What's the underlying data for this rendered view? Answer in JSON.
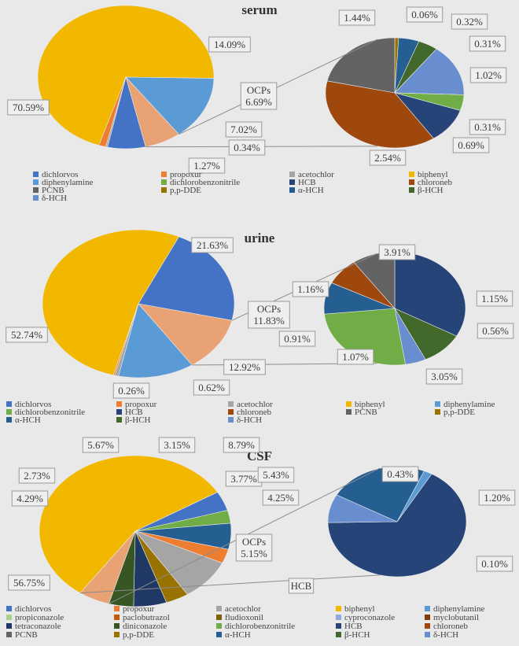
{
  "colors": {
    "dichlorvos": "#4472c4",
    "propoxur": "#ed7d31",
    "acetochlor": "#a5a5a5",
    "biphenyl": "#f2b800",
    "diphenylamine": "#5b9bd5",
    "dichlorobenzonitrile": "#70ad47",
    "HCB": "#264478",
    "chloroneb": "#9e480e",
    "PCNB": "#636363",
    "p,p-DDE": "#997300",
    "α-HCH": "#255e91",
    "β-HCH": "#43682b",
    "δ-HCH": "#698ed0",
    "propiconazole": "#a9d18e",
    "paclobutrazol": "#c55a11",
    "fludioxonil": "#7f6000",
    "cyproconazole": "#8faadc",
    "myclobutanil": "#843c0c",
    "tetraconazole": "#203864",
    "diniconazole": "#375623",
    "OCPs": "#e8a274"
  },
  "chart_data": [
    {
      "type": "pie",
      "title": "serum",
      "main_pie": {
        "slices": [
          {
            "name": "biphenyl",
            "label": "70.59%"
          },
          {
            "name": "diphenylamine",
            "label": "14.09%"
          },
          {
            "name": "OCPs",
            "label": "OCPs 6.69%"
          },
          {
            "name": "dichlorvos",
            "label": "7.02%"
          },
          {
            "name": "acetochlor",
            "label": "0.34%"
          },
          {
            "name": "propoxur",
            "label": "1.27%"
          }
        ]
      },
      "breakout_pie": {
        "slices": [
          {
            "name": "p,p-DDE",
            "label": "0.06%"
          },
          {
            "name": "α-HCH",
            "label": "0.32%"
          },
          {
            "name": "β-HCH",
            "label": "0.31%"
          },
          {
            "name": "δ-HCH",
            "label": "1.02%"
          },
          {
            "name": "dichlorobenzonitrile",
            "label": "0.31%"
          },
          {
            "name": "HCB",
            "label": "0.69%"
          },
          {
            "name": "chloroneb",
            "label": "2.54%"
          },
          {
            "name": "PCNB",
            "label": "1.44%"
          }
        ]
      },
      "legend": [
        "dichlorvos",
        "propoxur",
        "acetochlor",
        "biphenyl",
        "diphenylamine",
        "dichlorobenzonitrile",
        "HCB",
        "chloroneb",
        "PCNB",
        "p,p-DDE",
        "α-HCH",
        "β-HCH",
        "δ-HCH"
      ]
    },
    {
      "type": "pie",
      "title": "urine",
      "main_pie": {
        "slices": [
          {
            "name": "biphenyl",
            "label": "52.74%"
          },
          {
            "name": "dichlorvos",
            "label": "21.63%"
          },
          {
            "name": "OCPs",
            "label": "OCPs 11.83%"
          },
          {
            "name": "diphenylamine",
            "label": "12.92%"
          },
          {
            "name": "acetochlor",
            "label": "0.62%"
          },
          {
            "name": "propoxur",
            "label": "0.26%"
          }
        ]
      },
      "breakout_pie": {
        "slices": [
          {
            "name": "HCB",
            "label": "3.91%"
          },
          {
            "name": "β-HCH",
            "label": "1.15%"
          },
          {
            "name": "δ-HCH",
            "label": "0.56%"
          },
          {
            "name": "dichlorobenzonitrile",
            "label": "3.05%"
          },
          {
            "name": "α-HCH",
            "label": "1.07%"
          },
          {
            "name": "chloroneb",
            "label": "0.91%"
          },
          {
            "name": "PCNB",
            "label": "1.16%"
          }
        ]
      },
      "legend": [
        "dichlorvos",
        "propoxur",
        "acetochlor",
        "biphenyl",
        "diphenylamine",
        "dichlorobenzonitrile",
        "HCB",
        "chloroneb",
        "PCNB",
        "p,p-DDE",
        "α-HCH",
        "β-HCH",
        "δ-HCH"
      ]
    },
    {
      "type": "pie",
      "title": "CSF",
      "main_pie": {
        "slices": [
          {
            "name": "biphenyl",
            "label": "56.75%"
          },
          {
            "name": "dichlorvos",
            "label": "4.29%"
          },
          {
            "name": "dichlorobenzonitrile",
            "label": "2.73%"
          },
          {
            "name": "α-HCH",
            "label": "5.67%"
          },
          {
            "name": "propoxur",
            "label": "3.15%"
          },
          {
            "name": "acetochlor",
            "label": "8.79%"
          },
          {
            "name": "p,p-DDE",
            "label": "3.77%"
          },
          {
            "name": "tetraconazole",
            "label": "5.43%"
          },
          {
            "name": "diniconazole",
            "label": "4.25%"
          },
          {
            "name": "OCPs",
            "label": "OCPs 5.15%"
          }
        ]
      },
      "breakout_pie": {
        "slices": [
          {
            "name": "HCB",
            "label": "HCB"
          },
          {
            "name": "δ-HCH",
            "label": "0.43%"
          },
          {
            "name": "α-HCH",
            "label": "1.20%"
          },
          {
            "name": "diphenylamine",
            "label": "0.10%"
          }
        ]
      },
      "legend": [
        "dichlorvos",
        "propoxur",
        "acetochlor",
        "biphenyl",
        "diphenylamine",
        "propiconazole",
        "paclobutrazol",
        "fludioxonil",
        "cyproconazole",
        "myclobutanil",
        "tetraconazole",
        "diniconazole",
        "dichlorobenzonitrile",
        "HCB",
        "chloroneb",
        "PCNB",
        "p,p-DDE",
        "α-HCH",
        "β-HCH",
        "δ-HCH"
      ]
    }
  ]
}
